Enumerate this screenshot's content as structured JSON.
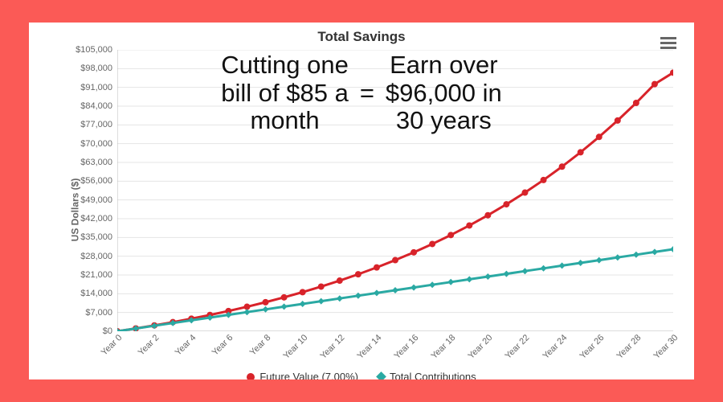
{
  "frame": {
    "background_color": "#fb5a56"
  },
  "card": {
    "background_color": "#ffffff"
  },
  "chart": {
    "type": "line",
    "title": "Total Savings",
    "title_fontsize": 17,
    "title_color": "#333333",
    "ylabel": "US Dollars ($)",
    "ylabel_fontsize": 12,
    "ylim": [
      0,
      105000
    ],
    "ytick_step": 7000,
    "ytick_labels": [
      "$0",
      "$7,000",
      "$14,000",
      "$21,000",
      "$28,000",
      "$35,000",
      "$42,000",
      "$49,000",
      "$56,000",
      "$63,000",
      "$70,000",
      "$77,000",
      "$84,000",
      "$91,000",
      "$98,000",
      "$105,000"
    ],
    "xlim": [
      0,
      30
    ],
    "xtick_labels": [
      "Year 0",
      "Year 2",
      "Year 4",
      "Year 6",
      "Year 8",
      "Year 10",
      "Year 12",
      "Year 14",
      "Year 16",
      "Year 18",
      "Year 20",
      "Year 22",
      "Year 24",
      "Year 26",
      "Year 28",
      "Year 30"
    ],
    "xtick_positions": [
      0,
      2,
      4,
      6,
      8,
      10,
      12,
      14,
      16,
      18,
      20,
      22,
      24,
      26,
      28,
      30
    ],
    "tick_fontsize": 11,
    "tick_color": "#666666",
    "grid_color": "#e5e5e5",
    "axis_color": "#bbbbbb",
    "background": "#ffffff",
    "line_width": 3,
    "marker_radius": 4,
    "series": [
      {
        "name": "Future Value (7.00%)",
        "color": "#d8232a",
        "marker": "circle",
        "x": [
          0,
          1,
          2,
          3,
          4,
          5,
          6,
          7,
          8,
          9,
          10,
          11,
          12,
          13,
          14,
          15,
          16,
          17,
          18,
          19,
          20,
          21,
          22,
          23,
          24,
          25,
          26,
          27,
          28,
          29,
          30
        ],
        "y": [
          0,
          1056,
          2186,
          3395,
          4688,
          6072,
          7553,
          9137,
          10833,
          12647,
          14588,
          16665,
          18888,
          21266,
          23811,
          26534,
          29447,
          32564,
          35899,
          39467,
          43285,
          47371,
          51743,
          56420,
          61425,
          66780,
          72510,
          78640,
          85199,
          92217,
          96500
        ]
      },
      {
        "name": "Total Contributions",
        "color": "#2aa9a3",
        "marker": "diamond",
        "x": [
          0,
          1,
          2,
          3,
          4,
          5,
          6,
          7,
          8,
          9,
          10,
          11,
          12,
          13,
          14,
          15,
          16,
          17,
          18,
          19,
          20,
          21,
          22,
          23,
          24,
          25,
          26,
          27,
          28,
          29,
          30
        ],
        "y": [
          0,
          1020,
          2040,
          3060,
          4080,
          5100,
          6120,
          7140,
          8160,
          9180,
          10200,
          11220,
          12240,
          13260,
          14280,
          15300,
          16320,
          17340,
          18360,
          19380,
          20400,
          21420,
          22440,
          23460,
          24480,
          25500,
          26520,
          27540,
          28560,
          29580,
          30600
        ]
      }
    ],
    "legend_position": "bottom"
  },
  "overlay": {
    "left": "Cutting one\nbill of $85 a\nmonth",
    "eq": "=",
    "right": "Earn over\n$96,000 in\n30 years",
    "fontsize": 31,
    "color": "#111111",
    "font_family": "Futura, 'Century Gothic', 'Helvetica Neue', Arial, sans-serif"
  },
  "menu": {
    "icon_name": "menu",
    "color": "#666666"
  },
  "legend_labels": {
    "series0": "Future Value (7.00%)",
    "series1": "Total Contributions"
  }
}
